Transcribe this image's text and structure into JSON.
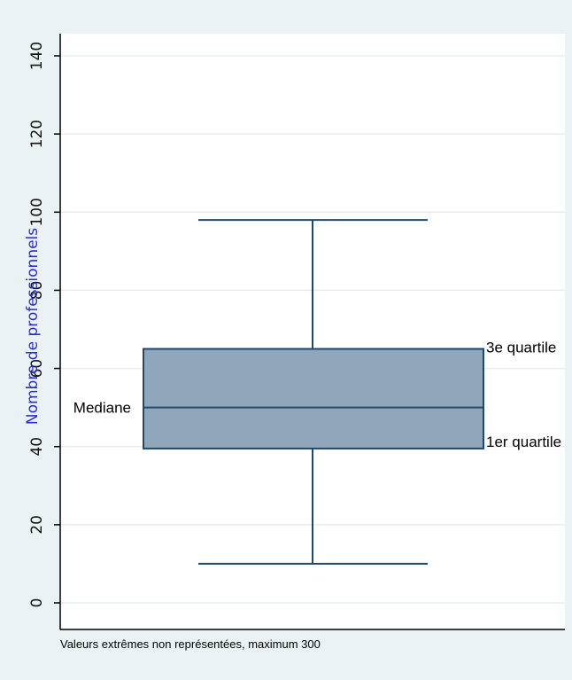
{
  "chart_data": {
    "type": "box",
    "ylabel": "Nombre de professionnels",
    "ylim": [
      0,
      145
    ],
    "yticks": [
      0,
      20,
      40,
      60,
      80,
      100,
      120,
      140
    ],
    "grid": true,
    "box": {
      "whisker_low": 10,
      "q1": 39.5,
      "median": 50,
      "q3": 65,
      "whisker_high": 98
    },
    "colors": {
      "box_fill": "#8fa6bb",
      "box_stroke": "#1f4a6e",
      "background": "#eaf2f3",
      "ylabel": "#2b2bd6"
    },
    "annotations": {
      "median": "Mediane",
      "q3": "3e quartile",
      "q1": "1er quartile"
    },
    "note": "Valeurs extrêmes non représentées, maximum 300"
  }
}
